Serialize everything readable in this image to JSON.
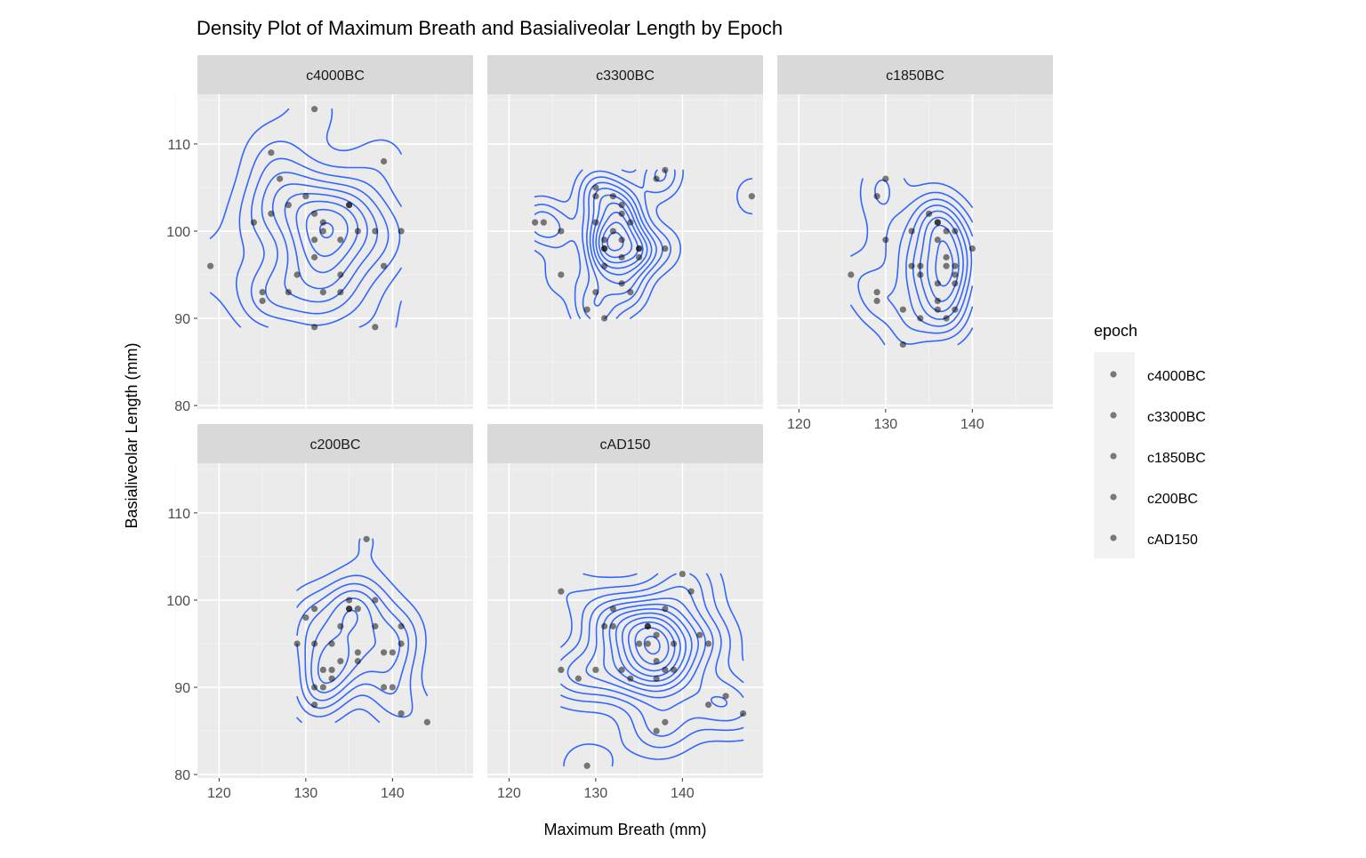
{
  "chart_data": {
    "type": "scatter",
    "overlay": "2d-density-contours",
    "title": "Density Plot of Maximum Breath and Basialiveolar Length by Epoch",
    "xlabel": "Maximum Breath (mm)",
    "ylabel": "Basialiveolar Length (mm)",
    "xlim": [
      117.5,
      149.3
    ],
    "ylim": [
      79.6,
      115.7
    ],
    "x_ticks": [
      120,
      130,
      140
    ],
    "y_ticks": [
      80,
      90,
      100,
      110
    ],
    "grid": true,
    "legend": {
      "title": "epoch",
      "position": "right",
      "entries": [
        "c4000BC",
        "c3300BC",
        "c1850BC",
        "c200BC",
        "cAD150"
      ]
    },
    "colors": {
      "contour": "#3366FF",
      "point": "#000000",
      "panel_bg": "#EBEBEB",
      "strip_bg": "#D9D9D9"
    },
    "panels": [
      {
        "name": "c4000BC",
        "points": [
          [
            131,
            114
          ],
          [
            119,
            96
          ],
          [
            126,
            109
          ],
          [
            127,
            106
          ],
          [
            124,
            101
          ],
          [
            126,
            102
          ],
          [
            128,
            103
          ],
          [
            130,
            104
          ],
          [
            131,
            102
          ],
          [
            132,
            101
          ],
          [
            132,
            100
          ],
          [
            131,
            99
          ],
          [
            135,
            103
          ],
          [
            134,
            99
          ],
          [
            136,
            100
          ],
          [
            138,
            100
          ],
          [
            141,
            100
          ],
          [
            139,
            108
          ],
          [
            139,
            96
          ],
          [
            131,
            97
          ],
          [
            129,
            95
          ],
          [
            134,
            95
          ],
          [
            132,
            93
          ],
          [
            134,
            93
          ],
          [
            128,
            93
          ],
          [
            125,
            93
          ],
          [
            125,
            92
          ],
          [
            131,
            89
          ],
          [
            138,
            89
          ],
          [
            135,
            103
          ]
        ]
      },
      {
        "name": "c3300BC",
        "points": [
          [
            123,
            101
          ],
          [
            124,
            101
          ],
          [
            126,
            100
          ],
          [
            126,
            95
          ],
          [
            130,
            105
          ],
          [
            130,
            104
          ],
          [
            130,
            101
          ],
          [
            132,
            104
          ],
          [
            133,
            103
          ],
          [
            133,
            102
          ],
          [
            134,
            101
          ],
          [
            132,
            100
          ],
          [
            131,
            99
          ],
          [
            131,
            98
          ],
          [
            131,
            98
          ],
          [
            131,
            96
          ],
          [
            133,
            97
          ],
          [
            135,
            98
          ],
          [
            135,
            97
          ],
          [
            138,
            98
          ],
          [
            137,
            106
          ],
          [
            138,
            107
          ],
          [
            133,
            94
          ],
          [
            130,
            93
          ],
          [
            134,
            93
          ],
          [
            129,
            91
          ],
          [
            131,
            90
          ],
          [
            148,
            104
          ],
          [
            135,
            98
          ],
          [
            133,
            99
          ]
        ]
      },
      {
        "name": "c1850BC",
        "points": [
          [
            130,
            106
          ],
          [
            129,
            104
          ],
          [
            130,
            99
          ],
          [
            126,
            95
          ],
          [
            129,
            93
          ],
          [
            129,
            92
          ],
          [
            132,
            91
          ],
          [
            132,
            87
          ],
          [
            133,
            100
          ],
          [
            133,
            96
          ],
          [
            134,
            96
          ],
          [
            134,
            95
          ],
          [
            134,
            90
          ],
          [
            135,
            102
          ],
          [
            136,
            101
          ],
          [
            136,
            99
          ],
          [
            136,
            94
          ],
          [
            136,
            92
          ],
          [
            136,
            91
          ],
          [
            137,
            100
          ],
          [
            137,
            97
          ],
          [
            137,
            96
          ],
          [
            137,
            90
          ],
          [
            138,
            100
          ],
          [
            138,
            96
          ],
          [
            138,
            95
          ],
          [
            138,
            94
          ],
          [
            138,
            91
          ],
          [
            140,
            98
          ],
          [
            136,
            101
          ]
        ]
      },
      {
        "name": "c200BC",
        "points": [
          [
            137,
            107
          ],
          [
            130,
            98
          ],
          [
            131,
            99
          ],
          [
            135,
            100
          ],
          [
            135,
            99
          ],
          [
            136,
            99
          ],
          [
            138,
            100
          ],
          [
            141,
            97
          ],
          [
            129,
            95
          ],
          [
            131,
            95
          ],
          [
            133,
            95
          ],
          [
            134,
            97
          ],
          [
            136,
            94
          ],
          [
            136,
            93
          ],
          [
            134,
            93
          ],
          [
            132,
            92
          ],
          [
            133,
            92
          ],
          [
            133,
            91
          ],
          [
            131,
            90
          ],
          [
            132,
            90
          ],
          [
            131,
            88
          ],
          [
            139,
            94
          ],
          [
            140,
            94
          ],
          [
            141,
            95
          ],
          [
            138,
            97
          ],
          [
            139,
            90
          ],
          [
            140,
            90
          ],
          [
            141,
            87
          ],
          [
            144,
            86
          ],
          [
            135,
            99
          ]
        ]
      },
      {
        "name": "cAD150",
        "points": [
          [
            126,
            101
          ],
          [
            126,
            92
          ],
          [
            128,
            91
          ],
          [
            130,
            92
          ],
          [
            131,
            97
          ],
          [
            132,
            97
          ],
          [
            132,
            99
          ],
          [
            133,
            92
          ],
          [
            134,
            91
          ],
          [
            135,
            95
          ],
          [
            136,
            95
          ],
          [
            136,
            97
          ],
          [
            137,
            96
          ],
          [
            137,
            93
          ],
          [
            137,
            91
          ],
          [
            138,
            99
          ],
          [
            138,
            92
          ],
          [
            139,
            92
          ],
          [
            139,
            95
          ],
          [
            140,
            103
          ],
          [
            141,
            101
          ],
          [
            142,
            96
          ],
          [
            143,
            95
          ],
          [
            143,
            88
          ],
          [
            145,
            89
          ],
          [
            147,
            87
          ],
          [
            138,
            86
          ],
          [
            137,
            85
          ],
          [
            129,
            81
          ],
          [
            136,
            97
          ]
        ]
      }
    ]
  }
}
